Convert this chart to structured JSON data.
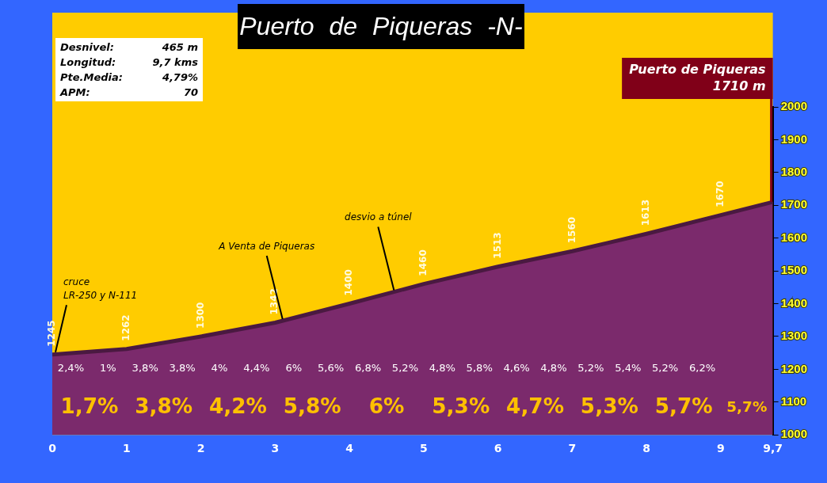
{
  "chart_data": {
    "type": "area",
    "title": "Puerto de Piqueras -N-",
    "x": [
      0,
      1,
      2,
      3,
      4,
      5,
      6,
      7,
      8,
      9,
      9.7
    ],
    "series": [
      {
        "color": "#7b2a6c",
        "values": [
          1245,
          1262,
          1300,
          1342,
          1400,
          1460,
          1513,
          1560,
          1613,
          1670,
          1710
        ],
        "value_labels": [
          "1245",
          "1262",
          "1300",
          "1342",
          "1400",
          "1460",
          "1513",
          "1560",
          "1613",
          "1670",
          null
        ]
      }
    ],
    "xlim": [
      0,
      9.7
    ],
    "xticks": [
      0,
      1,
      2,
      3,
      4,
      5,
      6,
      7,
      8,
      9,
      {
        "value": 9.7,
        "label": "9,7"
      }
    ],
    "ylim": [
      1000,
      2000
    ],
    "yticks": [
      1000,
      1100,
      1200,
      1300,
      1400,
      1500,
      1600,
      1700,
      1800,
      1900,
      2000
    ],
    "annotations": [
      "Desnivel: 465 m",
      "Longitud: 9,7 kms",
      "Pte.Media: 4,79%",
      "APM: 70",
      {
        "text": "cruce\nLR-250 y N-111",
        "x": 0,
        "y": 1245
      },
      {
        "text": "A Venta de Piqueras",
        "x": 3.1,
        "y": 1348
      },
      {
        "text": "desvio a túnel",
        "x": 4.6,
        "y": 1436
      },
      {
        "text": "Puerto de Piqueras\n1710 m",
        "x": 9.7,
        "y": 1710
      },
      "2,4%",
      "1%",
      "3,8%",
      "3,8%",
      "4%",
      "4,4%",
      "6%",
      "5,6%",
      "6,8%",
      "5,2%",
      "4,8%",
      "5,8%",
      "4,6%",
      "4,8%",
      "5,2%",
      "5,4%",
      "5,2%",
      "6,2%",
      "1,7%",
      "3,8%",
      "4,2%",
      "5,8%",
      "6%",
      "5,3%",
      "4,7%",
      "5,3%",
      "5,7%",
      "5,7%"
    ]
  }
}
